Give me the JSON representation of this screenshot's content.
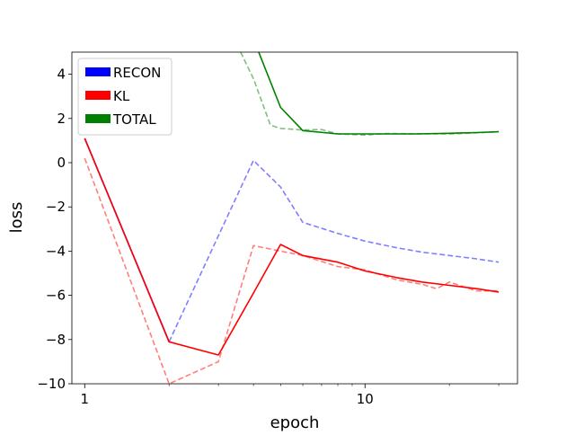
{
  "chart_data": {
    "type": "line",
    "title": "",
    "xlabel": "epoch",
    "ylabel": "loss",
    "xscale": "log",
    "xlim": [
      0.9,
      35
    ],
    "ylim": [
      -10,
      5
    ],
    "xticks": [
      1,
      10
    ],
    "yticks": [
      -10,
      -8,
      -6,
      -4,
      -2,
      0,
      2,
      4
    ],
    "grid": false,
    "legend_position": "top-left",
    "legend": [
      {
        "label": "RECON",
        "color": "#0000ff"
      },
      {
        "label": "KL",
        "color": "#ff0000"
      },
      {
        "label": "TOTAL",
        "color": "#008000"
      }
    ],
    "series": [
      {
        "name": "RECON",
        "color": "#0000ff",
        "style": "solid",
        "x": [
          1,
          2
        ],
        "y": [
          1.1,
          -8.1
        ]
      },
      {
        "name": "RECON",
        "color": "#0000ff",
        "style": "dashed",
        "x": [
          2,
          4,
          5,
          6,
          8,
          10,
          13,
          16,
          20,
          25,
          30
        ],
        "y": [
          -8.1,
          0.1,
          -1.1,
          -2.7,
          -3.2,
          -3.55,
          -3.85,
          -4.05,
          -4.2,
          -4.35,
          -4.5
        ]
      },
      {
        "name": "KL",
        "color": "#ff0000",
        "style": "solid",
        "x": [
          1,
          2,
          3,
          4,
          5,
          6,
          8,
          10,
          13,
          16,
          20,
          25,
          30
        ],
        "y": [
          1.1,
          -8.1,
          -8.7,
          -5.9,
          -3.7,
          -4.2,
          -4.5,
          -4.9,
          -5.2,
          -5.4,
          -5.55,
          -5.7,
          -5.85
        ]
      },
      {
        "name": "KL",
        "color": "#ff0000",
        "style": "dashed",
        "x": [
          1,
          2,
          3,
          4,
          5,
          6,
          8,
          10,
          13,
          16,
          18,
          20,
          25,
          30
        ],
        "y": [
          0.2,
          -10.0,
          -9.0,
          -3.75,
          -4.0,
          -4.2,
          -4.7,
          -4.85,
          -5.3,
          -5.5,
          -5.7,
          -5.4,
          -5.8,
          -5.8
        ]
      },
      {
        "name": "TOTAL",
        "color": "#008000",
        "style": "solid",
        "x": [
          4,
          5,
          6,
          8,
          10,
          15,
          20,
          25,
          30
        ],
        "y": [
          5.6,
          2.5,
          1.45,
          1.3,
          1.3,
          1.3,
          1.33,
          1.36,
          1.4
        ]
      },
      {
        "name": "TOTAL",
        "color": "#008000",
        "style": "dashed",
        "x": [
          3.6,
          4,
          4.6,
          5,
          6,
          7,
          8,
          10,
          12,
          16,
          20,
          25,
          30
        ],
        "y": [
          5.0,
          3.8,
          1.7,
          1.55,
          1.48,
          1.5,
          1.3,
          1.25,
          1.32,
          1.3,
          1.3,
          1.35,
          1.4
        ]
      }
    ]
  }
}
